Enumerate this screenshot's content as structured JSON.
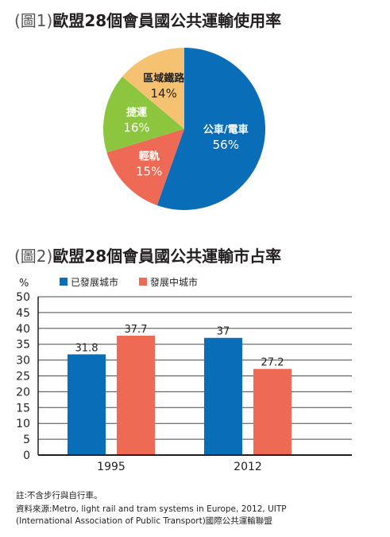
{
  "headings": {
    "pie_prefix": "(圖1)",
    "pie_title": "歐盟28個會員國公共運輸使用率",
    "bar_prefix": "(圖2)",
    "bar_title": "歐盟28個會員國公共運輸市占率"
  },
  "chart_data": [
    {
      "type": "pie",
      "slices": [
        {
          "label": "公車/電車",
          "value": 56,
          "value_label": "56%",
          "color": "#0a6db7"
        },
        {
          "label": "輕軌",
          "value": 15,
          "value_label": "15%",
          "color": "#ee6a54"
        },
        {
          "label": "捷運",
          "value": 16,
          "value_label": "16%",
          "color": "#8cc63f"
        },
        {
          "label": "區域鐵路",
          "value": 14,
          "value_label": "14%",
          "color": "#f5c272"
        }
      ]
    },
    {
      "type": "bar",
      "ylabel": "%",
      "categories": [
        "1995",
        "2012"
      ],
      "ylim": [
        0,
        50
      ],
      "yticks": [
        0,
        5,
        10,
        15,
        20,
        25,
        30,
        35,
        40,
        45,
        50
      ],
      "grid": true,
      "legend_position": "top-left",
      "series": [
        {
          "name": "已發展城市",
          "color": "#0a6db7",
          "values": [
            31.8,
            37
          ],
          "value_labels": [
            "31.8",
            "37"
          ]
        },
        {
          "name": "發展中城市",
          "color": "#ee6a54",
          "values": [
            37.7,
            27.2
          ],
          "value_labels": [
            "37.7",
            "27.2"
          ]
        }
      ]
    }
  ],
  "notes": {
    "note1": "註:不含步行與自行車。",
    "note2": "資料來源:Metro, light rail and tram systems in Europe, 2012, UITP",
    "note3": "(International Association of Public Transport)國際公共運輸聯盟"
  }
}
